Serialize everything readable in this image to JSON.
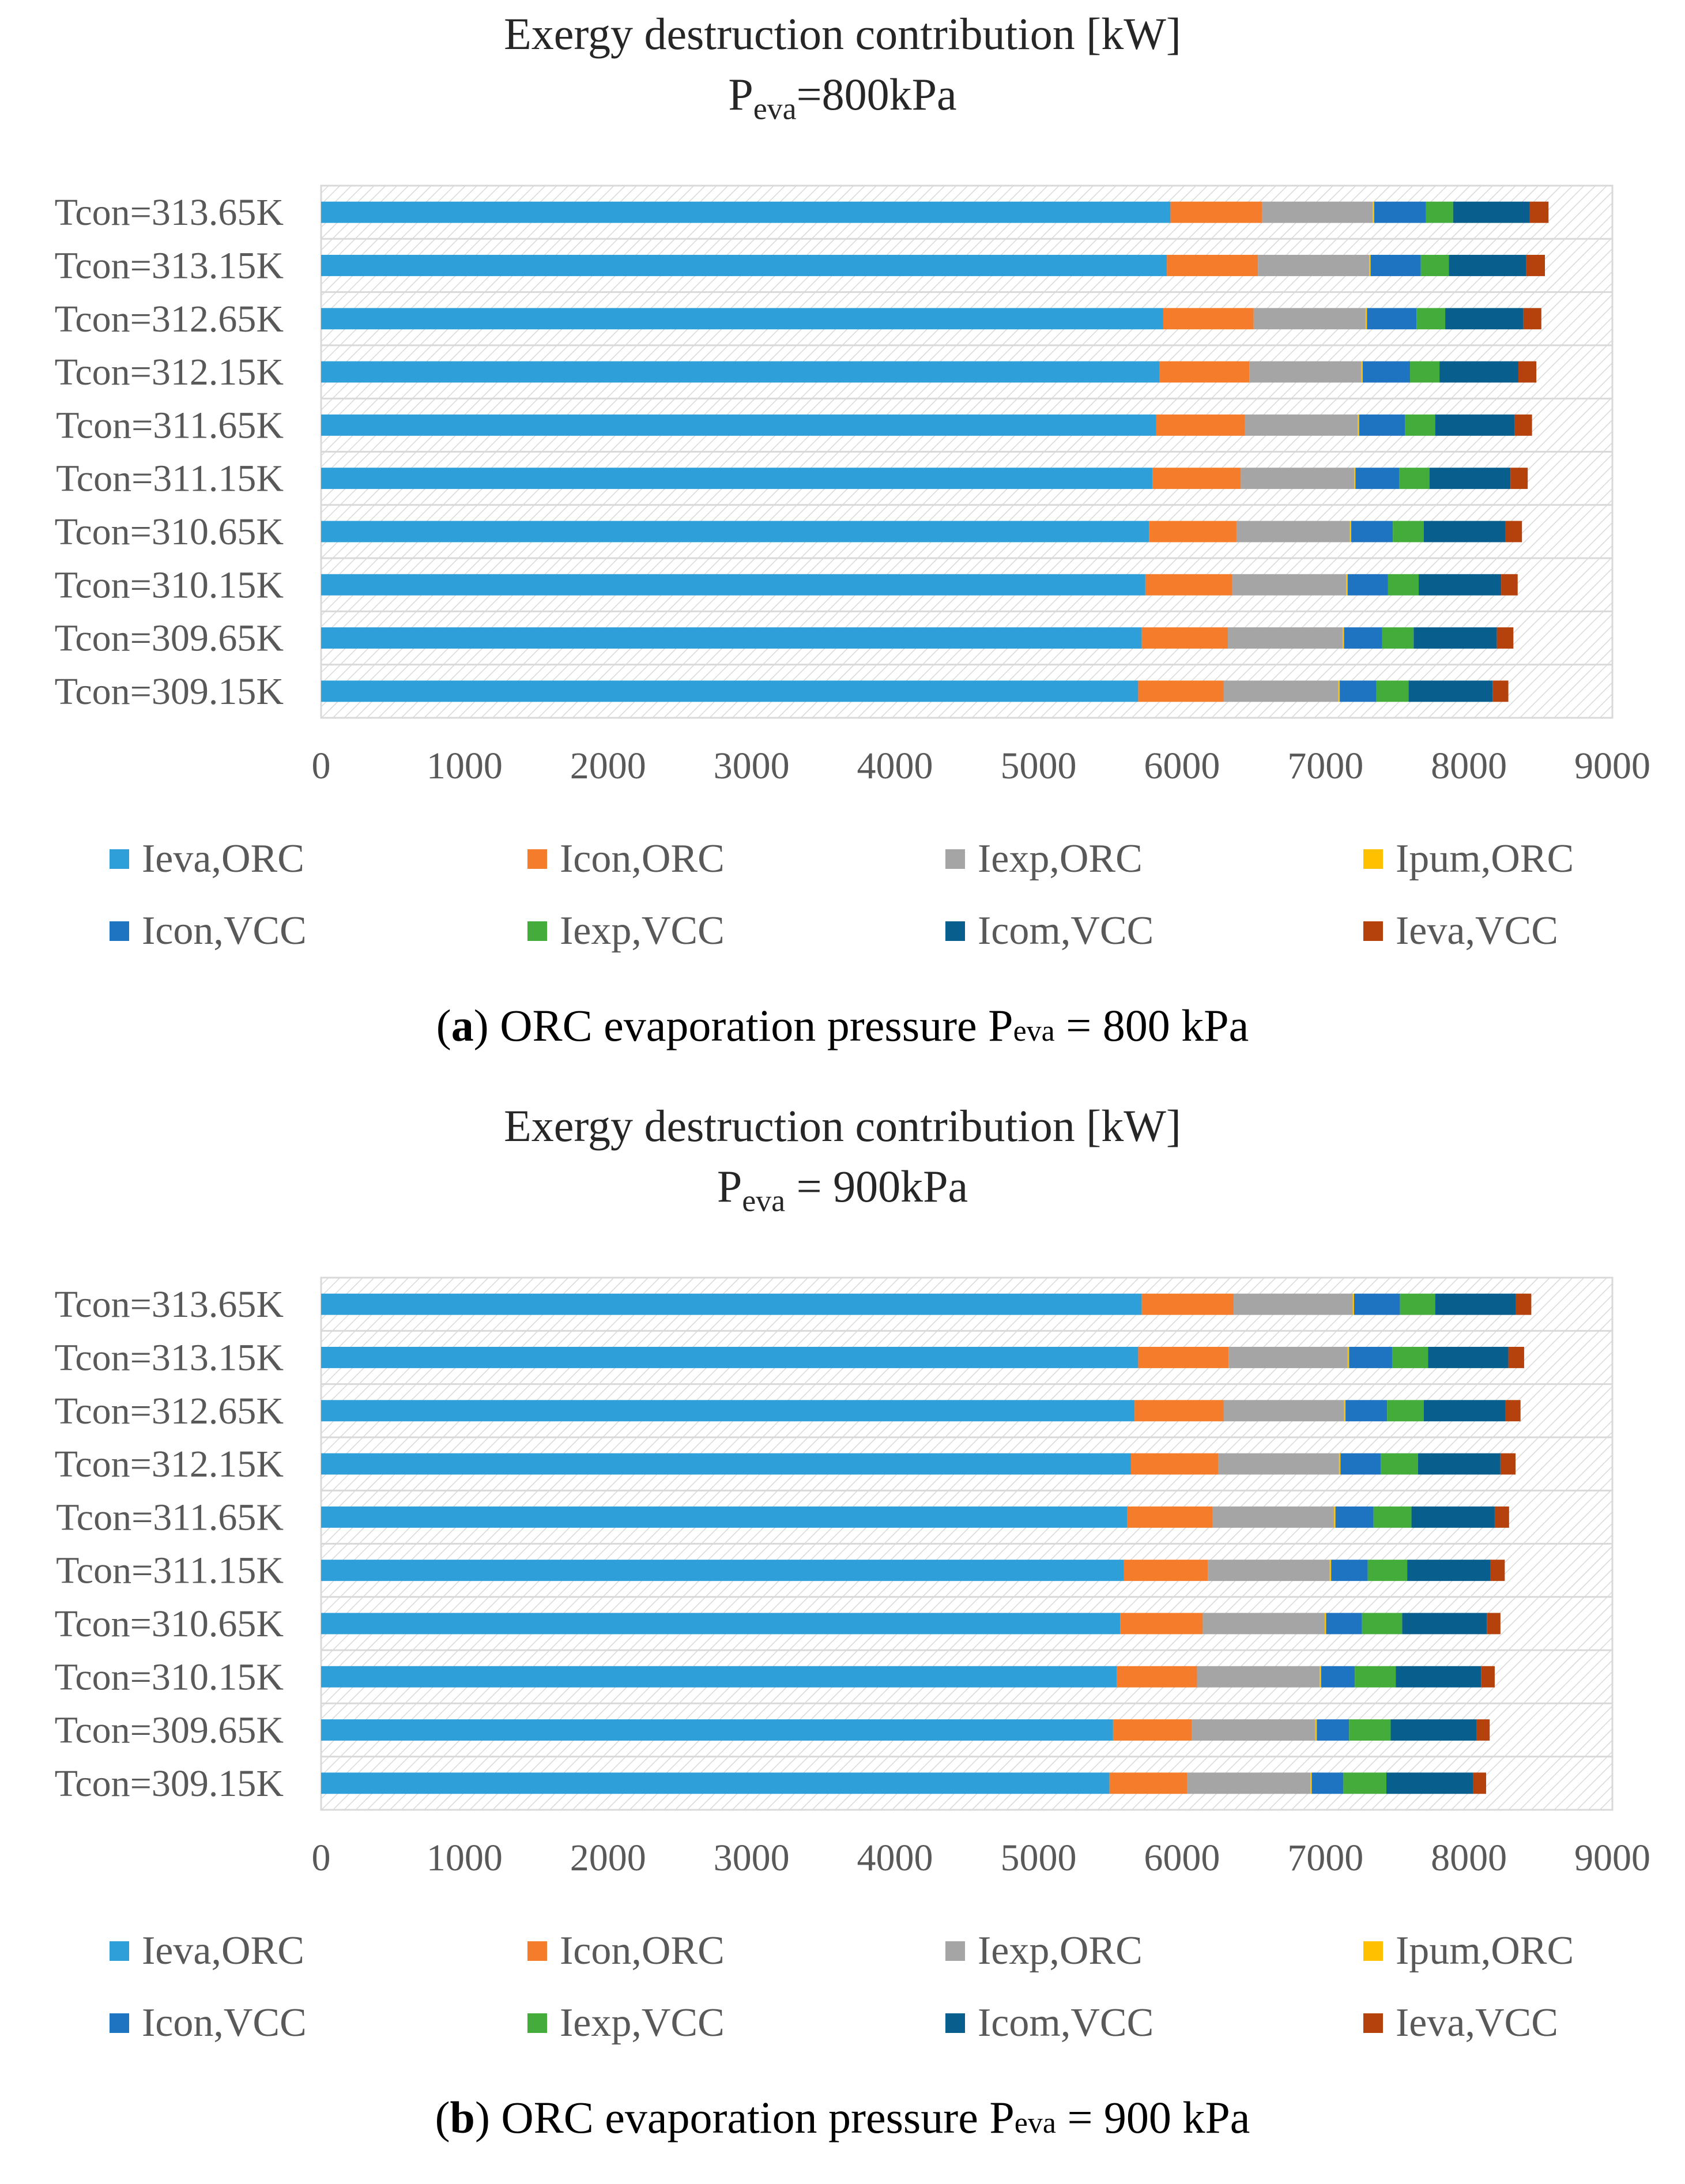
{
  "chart_data": [
    {
      "type": "bar",
      "orientation": "horizontal",
      "stacked": true,
      "title": "Exergy destruction contribution [kW]",
      "subtitle_main": "P",
      "subtitle_sub": "eva",
      "subtitle_rest": "=800kPa",
      "caption_label": "a",
      "caption_main": "ORC evaporation pressure P",
      "caption_sub": "eva",
      "caption_rest": "= 800 kPa",
      "categories": [
        "Tcon=313.65K",
        "Tcon=313.15K",
        "Tcon=312.65K",
        "Tcon=312.15K",
        "Tcon=311.65K",
        "Tcon=311.15K",
        "Tcon=310.65K",
        "Tcon=310.15K",
        "Tcon=309.65K",
        "Tcon=309.15K"
      ],
      "xlim": [
        0,
        9000
      ],
      "xticks": [
        "0",
        "1000",
        "2000",
        "3000",
        "4000",
        "5000",
        "6000",
        "7000",
        "8000",
        "9000"
      ],
      "series": [
        {
          "name": "Ieva,ORC",
          "color": "#2e9fd9",
          "values": [
            5920,
            5895,
            5870,
            5845,
            5820,
            5795,
            5770,
            5745,
            5720,
            5695
          ]
        },
        {
          "name": "Icon,ORC",
          "color": "#f47c2a",
          "values": [
            640,
            635,
            630,
            625,
            620,
            615,
            610,
            605,
            600,
            595
          ]
        },
        {
          "name": "Iexp,ORC",
          "color": "#a5a5a5",
          "values": [
            770,
            775,
            780,
            780,
            785,
            790,
            790,
            795,
            800,
            800
          ]
        },
        {
          "name": "Ipum,ORC",
          "color": "#ffc000",
          "values": [
            10,
            10,
            10,
            10,
            10,
            10,
            10,
            10,
            10,
            10
          ]
        },
        {
          "name": "Icon,VCC",
          "color": "#1f74c2",
          "values": [
            360,
            350,
            345,
            330,
            320,
            305,
            290,
            280,
            265,
            255
          ]
        },
        {
          "name": "Iexp,VCC",
          "color": "#43ac3b",
          "values": [
            190,
            195,
            200,
            205,
            210,
            210,
            215,
            215,
            220,
            225
          ]
        },
        {
          "name": "Icom,VCC",
          "color": "#085f8e",
          "values": [
            535,
            540,
            545,
            550,
            555,
            565,
            570,
            575,
            580,
            585
          ]
        },
        {
          "name": "Ieva,VCC",
          "color": "#b5420d",
          "values": [
            130,
            130,
            125,
            125,
            120,
            120,
            115,
            115,
            115,
            110
          ]
        }
      ]
    },
    {
      "type": "bar",
      "orientation": "horizontal",
      "stacked": true,
      "title": "Exergy destruction contribution [kW]",
      "subtitle_main": "P",
      "subtitle_sub": "eva",
      "subtitle_rest": " = 900kPa",
      "caption_label": "b",
      "caption_main": "ORC evaporation pressure P",
      "caption_sub": "eva",
      "caption_rest": "= 900 kPa",
      "categories": [
        "Tcon=313.65K",
        "Tcon=313.15K",
        "Tcon=312.65K",
        "Tcon=312.15K",
        "Tcon=311.65K",
        "Tcon=311.15K",
        "Tcon=310.65K",
        "Tcon=310.15K",
        "Tcon=309.65K",
        "Tcon=309.15K"
      ],
      "xlim": [
        0,
        9000
      ],
      "xticks": [
        "0",
        "1000",
        "2000",
        "3000",
        "4000",
        "5000",
        "6000",
        "7000",
        "8000",
        "9000"
      ],
      "series": [
        {
          "name": "Ieva,ORC",
          "color": "#2e9fd9",
          "values": [
            5720,
            5695,
            5670,
            5645,
            5620,
            5595,
            5570,
            5545,
            5520,
            5495
          ]
        },
        {
          "name": "Icon,ORC",
          "color": "#f47c2a",
          "values": [
            640,
            630,
            620,
            610,
            595,
            585,
            575,
            560,
            550,
            540
          ]
        },
        {
          "name": "Iexp,ORC",
          "color": "#a5a5a5",
          "values": [
            830,
            830,
            840,
            840,
            845,
            850,
            850,
            855,
            860,
            860
          ]
        },
        {
          "name": "Ipum,ORC",
          "color": "#ffc000",
          "values": [
            10,
            10,
            10,
            10,
            10,
            10,
            10,
            10,
            10,
            10
          ]
        },
        {
          "name": "Icon,VCC",
          "color": "#1f74c2",
          "values": [
            320,
            300,
            290,
            280,
            265,
            255,
            250,
            235,
            225,
            220
          ]
        },
        {
          "name": "Iexp,VCC",
          "color": "#43ac3b",
          "values": [
            245,
            250,
            255,
            260,
            265,
            275,
            280,
            285,
            290,
            300
          ]
        },
        {
          "name": "Icom,VCC",
          "color": "#085f8e",
          "values": [
            560,
            560,
            570,
            575,
            580,
            580,
            590,
            595,
            600,
            605
          ]
        },
        {
          "name": "Ieva,VCC",
          "color": "#b5420d",
          "values": [
            110,
            110,
            105,
            105,
            100,
            100,
            95,
            95,
            90,
            90
          ]
        }
      ]
    }
  ]
}
